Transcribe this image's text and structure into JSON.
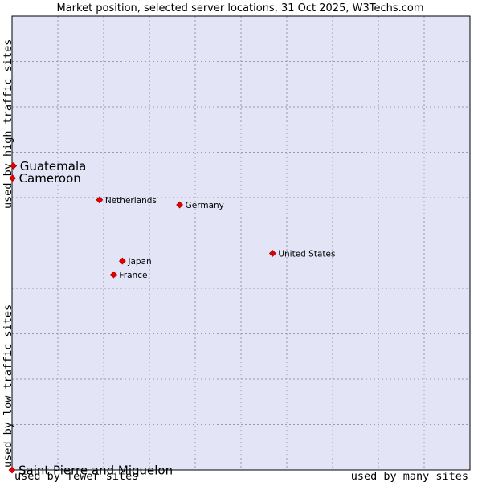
{
  "chart_data": {
    "type": "scatter",
    "title": "Market position, selected server locations, 31 Oct 2025, W3Techs.com",
    "xlabel_low": "used by fewer sites",
    "xlabel_high": "used by many sites",
    "ylabel_low": "used by low traffic sites",
    "ylabel_high": "used by high traffic sites",
    "xlim": [
      0,
      100
    ],
    "ylim": [
      0,
      100
    ],
    "grid": true,
    "point_color": "#e00000",
    "plot_bg": "#e4e4f7",
    "points": [
      {
        "name": "Guatemala",
        "x": 0.3,
        "y": 67.0,
        "highlight": true
      },
      {
        "name": "Cameroon",
        "x": 0.1,
        "y": 64.3,
        "highlight": true
      },
      {
        "name": "Netherlands",
        "x": 19.1,
        "y": 59.5,
        "highlight": false
      },
      {
        "name": "Germany",
        "x": 36.6,
        "y": 58.4,
        "highlight": false
      },
      {
        "name": "United States",
        "x": 56.9,
        "y": 47.7,
        "highlight": false
      },
      {
        "name": "Japan",
        "x": 24.1,
        "y": 46.0,
        "highlight": false
      },
      {
        "name": "France",
        "x": 22.2,
        "y": 43.0,
        "highlight": false
      },
      {
        "name": "Saint Pierre and Miquelon",
        "x": 0.0,
        "y": 0.0,
        "highlight": true
      }
    ]
  }
}
